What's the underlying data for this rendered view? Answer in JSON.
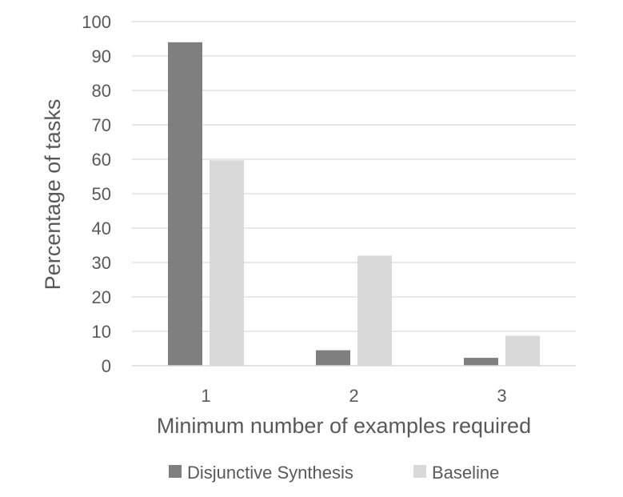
{
  "chart_data": {
    "type": "bar",
    "title": "",
    "xlabel": "Minimum number of examples required",
    "ylabel": "Percentage of tasks",
    "categories": [
      "1",
      "2",
      "3"
    ],
    "series": [
      {
        "name": "Disjunctive Synthesis",
        "values": [
          94,
          4.5,
          2.3
        ],
        "color": "#7f7f7f"
      },
      {
        "name": "Baseline",
        "values": [
          59.7,
          32,
          8.7
        ],
        "color": "#d9d9d9"
      }
    ],
    "ylim": [
      0,
      100
    ],
    "yticks": [
      "0",
      "10",
      "20",
      "30",
      "40",
      "50",
      "60",
      "70",
      "80",
      "90",
      "100"
    ],
    "grid": true,
    "legend_position": "bottom"
  }
}
